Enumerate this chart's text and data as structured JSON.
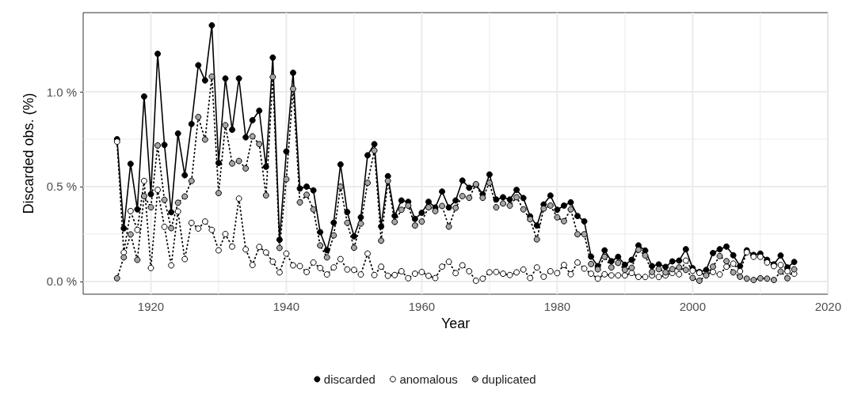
{
  "chart_data": {
    "type": "line",
    "xlabel": "Year",
    "ylabel": "Discarded obs. (%)",
    "x": [
      1915,
      1916,
      1917,
      1918,
      1919,
      1920,
      1921,
      1922,
      1923,
      1924,
      1925,
      1926,
      1927,
      1928,
      1929,
      1930,
      1931,
      1932,
      1933,
      1934,
      1935,
      1936,
      1937,
      1938,
      1939,
      1940,
      1941,
      1942,
      1943,
      1944,
      1945,
      1946,
      1947,
      1948,
      1949,
      1950,
      1951,
      1952,
      1953,
      1954,
      1955,
      1956,
      1957,
      1958,
      1959,
      1960,
      1961,
      1962,
      1963,
      1964,
      1965,
      1966,
      1967,
      1968,
      1969,
      1970,
      1971,
      1972,
      1973,
      1974,
      1975,
      1976,
      1977,
      1978,
      1979,
      1980,
      1981,
      1982,
      1983,
      1984,
      1985,
      1986,
      1987,
      1988,
      1989,
      1990,
      1991,
      1992,
      1993,
      1994,
      1995,
      1996,
      1997,
      1998,
      1999,
      2000,
      2001,
      2002,
      2003,
      2004,
      2005,
      2006,
      2007,
      2008,
      2009,
      2010,
      2011,
      2012,
      2013,
      2014,
      2015
    ],
    "series": [
      {
        "name": "discarded",
        "color": "#000000",
        "line_style": "solid",
        "values": [
          0.75,
          0.28,
          0.62,
          0.38,
          0.975,
          0.46,
          1.2,
          0.72,
          0.365,
          0.78,
          0.56,
          0.83,
          1.14,
          1.06,
          1.35,
          0.625,
          1.07,
          0.8,
          1.07,
          0.76,
          0.85,
          0.9,
          0.605,
          1.18,
          0.22,
          0.685,
          1.1,
          0.49,
          0.5,
          0.48,
          0.26,
          0.165,
          0.31,
          0.617,
          0.366,
          0.238,
          0.338,
          0.665,
          0.724,
          0.29,
          0.555,
          0.346,
          0.427,
          0.42,
          0.33,
          0.362,
          0.42,
          0.39,
          0.474,
          0.39,
          0.427,
          0.532,
          0.494,
          0.51,
          0.46,
          0.564,
          0.432,
          0.444,
          0.432,
          0.483,
          0.44,
          0.343,
          0.295,
          0.406,
          0.453,
          0.378,
          0.4,
          0.417,
          0.345,
          0.317,
          0.131,
          0.081,
          0.164,
          0.107,
          0.13,
          0.088,
          0.114,
          0.19,
          0.163,
          0.081,
          0.09,
          0.077,
          0.106,
          0.11,
          0.17,
          0.07,
          0.05,
          0.061,
          0.15,
          0.17,
          0.184,
          0.138,
          0.081,
          0.164,
          0.14,
          0.147,
          0.114,
          0.09,
          0.137,
          0.074,
          0.103
        ]
      },
      {
        "name": "anomalous",
        "color": "#ffffff",
        "line_style": "dotted",
        "values": [
          0.737,
          0.153,
          0.371,
          0.272,
          0.53,
          0.071,
          0.483,
          0.288,
          0.085,
          0.369,
          0.118,
          0.309,
          0.279,
          0.316,
          0.272,
          0.164,
          0.25,
          0.184,
          0.437,
          0.169,
          0.087,
          0.182,
          0.153,
          0.104,
          0.048,
          0.147,
          0.085,
          0.081,
          0.05,
          0.1,
          0.071,
          0.037,
          0.074,
          0.118,
          0.063,
          0.061,
          0.037,
          0.147,
          0.034,
          0.078,
          0.03,
          0.034,
          0.054,
          0.017,
          0.041,
          0.05,
          0.03,
          0.018,
          0.078,
          0.104,
          0.044,
          0.085,
          0.054,
          0.004,
          0.015,
          0.048,
          0.05,
          0.041,
          0.034,
          0.048,
          0.063,
          0.018,
          0.074,
          0.025,
          0.054,
          0.044,
          0.087,
          0.038,
          0.1,
          0.068,
          0.041,
          0.015,
          0.038,
          0.032,
          0.032,
          0.032,
          0.045,
          0.024,
          0.024,
          0.032,
          0.024,
          0.032,
          0.045,
          0.038,
          0.11,
          0.057,
          0.045,
          0.037,
          0.05,
          0.037,
          0.078,
          0.094,
          0.054,
          0.154,
          0.13,
          0.13,
          0.1,
          0.081,
          0.087,
          0.054,
          0.041
        ]
      },
      {
        "name": "duplicated",
        "color": "#a6a6a6",
        "line_style": "dotted",
        "values": [
          0.017,
          0.127,
          0.248,
          0.114,
          0.45,
          0.391,
          0.717,
          0.43,
          0.281,
          0.415,
          0.448,
          0.53,
          0.867,
          0.748,
          1.08,
          0.466,
          0.824,
          0.622,
          0.635,
          0.596,
          0.765,
          0.724,
          0.454,
          1.078,
          0.177,
          0.539,
          1.015,
          0.417,
          0.457,
          0.38,
          0.19,
          0.127,
          0.243,
          0.5,
          0.309,
          0.178,
          0.305,
          0.52,
          0.69,
          0.215,
          0.53,
          0.314,
          0.378,
          0.4,
          0.295,
          0.316,
          0.391,
          0.371,
          0.398,
          0.289,
          0.388,
          0.45,
          0.441,
          0.513,
          0.441,
          0.52,
          0.391,
          0.411,
          0.4,
          0.444,
          0.38,
          0.328,
          0.222,
          0.384,
          0.4,
          0.338,
          0.318,
          0.38,
          0.249,
          0.249,
          0.092,
          0.064,
          0.13,
          0.074,
          0.098,
          0.061,
          0.072,
          0.167,
          0.137,
          0.05,
          0.065,
          0.048,
          0.065,
          0.074,
          0.061,
          0.019,
          0.004,
          0.032,
          0.078,
          0.134,
          0.107,
          0.048,
          0.025,
          0.015,
          0.008,
          0.017,
          0.015,
          0.008,
          0.052,
          0.017,
          0.064
        ]
      }
    ],
    "xlim": [
      1910,
      2020
    ],
    "xticks": [
      1920,
      1940,
      1960,
      1980,
      2000,
      2020
    ],
    "ylim": [
      -0.067,
      1.417
    ],
    "yticks": [
      {
        "value": 0,
        "label": "0.0 %"
      },
      {
        "value": 0.5,
        "label": "0.5 %"
      },
      {
        "value": 1,
        "label": "1.0 %"
      }
    ],
    "grid": true,
    "legend": "bottom",
    "marker": "circle"
  }
}
